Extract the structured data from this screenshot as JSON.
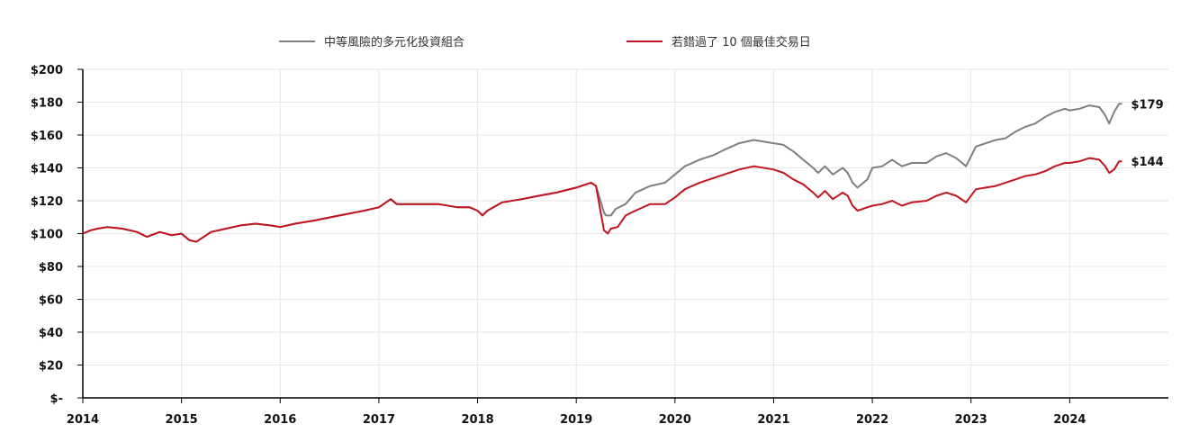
{
  "chart_data": {
    "type": "line",
    "title": "",
    "xlabel": "",
    "ylabel": "",
    "x_ticks": [
      "2014",
      "2015",
      "2016",
      "2017",
      "2018",
      "2019",
      "2020",
      "2021",
      "2022",
      "2023",
      "2024"
    ],
    "y_ticks": [
      "$-",
      "$20",
      "$40",
      "$60",
      "$80",
      "$100",
      "$120",
      "$140",
      "$160",
      "$180",
      "$200"
    ],
    "xlim": [
      2014.0,
      2025.0
    ],
    "ylim": [
      0,
      200
    ],
    "grid": true,
    "legend_position": "top",
    "series": [
      {
        "name": "中等風險的多元化投資組合",
        "color": "#7f7f7f",
        "end_label": "$179",
        "points": [
          [
            2014.0,
            100
          ],
          [
            2014.08,
            102
          ],
          [
            2014.15,
            103
          ],
          [
            2014.25,
            104
          ],
          [
            2014.4,
            103
          ],
          [
            2014.55,
            101
          ],
          [
            2014.65,
            98
          ],
          [
            2014.78,
            101
          ],
          [
            2014.9,
            99
          ],
          [
            2015.0,
            100
          ],
          [
            2015.08,
            96
          ],
          [
            2015.15,
            95
          ],
          [
            2015.3,
            101
          ],
          [
            2015.45,
            103
          ],
          [
            2015.6,
            105
          ],
          [
            2015.75,
            106
          ],
          [
            2015.9,
            105
          ],
          [
            2016.0,
            104
          ],
          [
            2016.15,
            106
          ],
          [
            2016.35,
            108
          ],
          [
            2016.6,
            111
          ],
          [
            2016.85,
            114
          ],
          [
            2017.0,
            116
          ],
          [
            2017.12,
            121
          ],
          [
            2017.18,
            118
          ],
          [
            2017.35,
            118
          ],
          [
            2017.6,
            118
          ],
          [
            2017.8,
            116
          ],
          [
            2017.92,
            116
          ],
          [
            2018.0,
            114
          ],
          [
            2018.05,
            111
          ],
          [
            2018.1,
            114
          ],
          [
            2018.25,
            119
          ],
          [
            2018.45,
            121
          ],
          [
            2018.62,
            123
          ],
          [
            2018.8,
            125
          ],
          [
            2019.0,
            128
          ],
          [
            2019.15,
            131
          ],
          [
            2019.2,
            129
          ],
          [
            2019.28,
            113
          ],
          [
            2019.3,
            111
          ],
          [
            2019.35,
            111
          ],
          [
            2019.4,
            115
          ],
          [
            2019.5,
            118
          ],
          [
            2019.6,
            125
          ],
          [
            2019.75,
            129
          ],
          [
            2019.9,
            131
          ],
          [
            2020.0,
            136
          ],
          [
            2020.1,
            141
          ],
          [
            2020.25,
            145
          ],
          [
            2020.4,
            148
          ],
          [
            2020.5,
            151
          ],
          [
            2020.65,
            155
          ],
          [
            2020.8,
            157
          ],
          [
            2021.0,
            155
          ],
          [
            2021.1,
            154
          ],
          [
            2021.2,
            150
          ],
          [
            2021.3,
            145
          ],
          [
            2021.4,
            140
          ],
          [
            2021.45,
            137
          ],
          [
            2021.52,
            141
          ],
          [
            2021.6,
            136
          ],
          [
            2021.7,
            140
          ],
          [
            2021.75,
            137
          ],
          [
            2021.8,
            131
          ],
          [
            2021.85,
            128
          ],
          [
            2021.95,
            133
          ],
          [
            2022.0,
            140
          ],
          [
            2022.1,
            141
          ],
          [
            2022.2,
            145
          ],
          [
            2022.3,
            141
          ],
          [
            2022.4,
            143
          ],
          [
            2022.55,
            143
          ],
          [
            2022.65,
            147
          ],
          [
            2022.75,
            149
          ],
          [
            2022.85,
            146
          ],
          [
            2022.95,
            141
          ],
          [
            2023.05,
            153
          ],
          [
            2023.15,
            155
          ],
          [
            2023.25,
            157
          ],
          [
            2023.35,
            158
          ],
          [
            2023.45,
            162
          ],
          [
            2023.55,
            165
          ],
          [
            2023.65,
            167
          ],
          [
            2023.75,
            171
          ],
          [
            2023.85,
            174
          ],
          [
            2023.95,
            176
          ],
          [
            2024.0,
            175
          ],
          [
            2024.1,
            176
          ],
          [
            2024.2,
            178
          ],
          [
            2024.3,
            177
          ],
          [
            2024.36,
            172
          ],
          [
            2024.4,
            167
          ],
          [
            2024.45,
            174
          ],
          [
            2024.5,
            179
          ],
          [
            2024.53,
            179
          ]
        ]
      },
      {
        "name": "若錯過了 10 個最佳交易日",
        "color": "#c0141f",
        "end_label": "$144",
        "points": [
          [
            2014.0,
            100
          ],
          [
            2014.08,
            102
          ],
          [
            2014.15,
            103
          ],
          [
            2014.25,
            104
          ],
          [
            2014.4,
            103
          ],
          [
            2014.55,
            101
          ],
          [
            2014.65,
            98
          ],
          [
            2014.78,
            101
          ],
          [
            2014.9,
            99
          ],
          [
            2015.0,
            100
          ],
          [
            2015.08,
            96
          ],
          [
            2015.15,
            95
          ],
          [
            2015.3,
            101
          ],
          [
            2015.45,
            103
          ],
          [
            2015.6,
            105
          ],
          [
            2015.75,
            106
          ],
          [
            2015.9,
            105
          ],
          [
            2016.0,
            104
          ],
          [
            2016.15,
            106
          ],
          [
            2016.35,
            108
          ],
          [
            2016.6,
            111
          ],
          [
            2016.85,
            114
          ],
          [
            2017.0,
            116
          ],
          [
            2017.12,
            121
          ],
          [
            2017.18,
            118
          ],
          [
            2017.35,
            118
          ],
          [
            2017.6,
            118
          ],
          [
            2017.8,
            116
          ],
          [
            2017.92,
            116
          ],
          [
            2018.0,
            114
          ],
          [
            2018.05,
            111
          ],
          [
            2018.1,
            114
          ],
          [
            2018.25,
            119
          ],
          [
            2018.45,
            121
          ],
          [
            2018.62,
            123
          ],
          [
            2018.8,
            125
          ],
          [
            2019.0,
            128
          ],
          [
            2019.15,
            131
          ],
          [
            2019.2,
            129
          ],
          [
            2019.28,
            102
          ],
          [
            2019.32,
            100
          ],
          [
            2019.35,
            103
          ],
          [
            2019.42,
            104
          ],
          [
            2019.5,
            111
          ],
          [
            2019.6,
            114
          ],
          [
            2019.75,
            118
          ],
          [
            2019.9,
            118
          ],
          [
            2020.0,
            122
          ],
          [
            2020.1,
            127
          ],
          [
            2020.25,
            131
          ],
          [
            2020.4,
            134
          ],
          [
            2020.5,
            136
          ],
          [
            2020.65,
            139
          ],
          [
            2020.8,
            141
          ],
          [
            2021.0,
            139
          ],
          [
            2021.1,
            137
          ],
          [
            2021.2,
            133
          ],
          [
            2021.3,
            130
          ],
          [
            2021.4,
            125
          ],
          [
            2021.45,
            122
          ],
          [
            2021.52,
            126
          ],
          [
            2021.6,
            121
          ],
          [
            2021.7,
            125
          ],
          [
            2021.75,
            123
          ],
          [
            2021.8,
            117
          ],
          [
            2021.85,
            114
          ],
          [
            2021.95,
            116
          ],
          [
            2022.0,
            117
          ],
          [
            2022.1,
            118
          ],
          [
            2022.2,
            120
          ],
          [
            2022.3,
            117
          ],
          [
            2022.4,
            119
          ],
          [
            2022.55,
            120
          ],
          [
            2022.65,
            123
          ],
          [
            2022.75,
            125
          ],
          [
            2022.85,
            123
          ],
          [
            2022.95,
            119
          ],
          [
            2023.05,
            127
          ],
          [
            2023.15,
            128
          ],
          [
            2023.25,
            129
          ],
          [
            2023.35,
            131
          ],
          [
            2023.45,
            133
          ],
          [
            2023.55,
            135
          ],
          [
            2023.65,
            136
          ],
          [
            2023.75,
            138
          ],
          [
            2023.85,
            141
          ],
          [
            2023.95,
            143
          ],
          [
            2024.0,
            143
          ],
          [
            2024.1,
            144
          ],
          [
            2024.2,
            146
          ],
          [
            2024.3,
            145
          ],
          [
            2024.36,
            141
          ],
          [
            2024.4,
            137
          ],
          [
            2024.45,
            139
          ],
          [
            2024.5,
            144
          ],
          [
            2024.53,
            144
          ]
        ]
      }
    ]
  }
}
